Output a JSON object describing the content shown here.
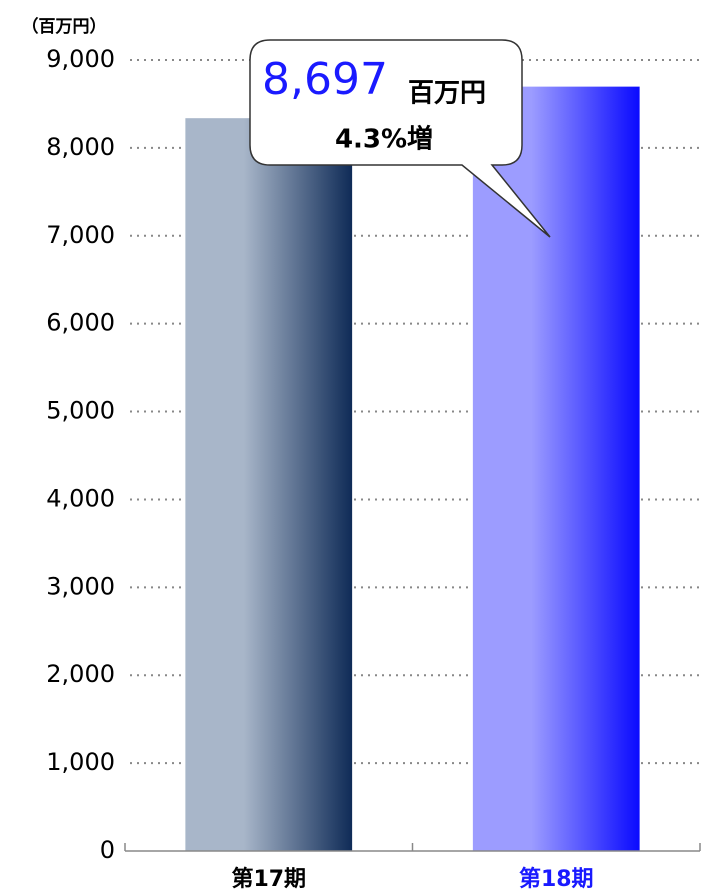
{
  "chart_data": {
    "type": "bar",
    "unit_label": "（百万円）",
    "categories": [
      "第17期",
      "第18期"
    ],
    "values": [
      8338,
      8697
    ],
    "value_labels": [
      null,
      "8,697"
    ],
    "value_label_unit": "百万円",
    "annotation": "4.3%増",
    "gradients": [
      [
        "#a8b6c9",
        "#0f2b57"
      ],
      [
        "#9c9cff",
        "#0a0aff"
      ]
    ],
    "label_colors": [
      "#000000",
      "#1a1aff"
    ],
    "value_label_color": "#1a1aff",
    "ylim": [
      0,
      9000
    ],
    "yticks": [
      0,
      {
        "value": 1000,
        "label": "1,000"
      },
      {
        "value": 2000,
        "label": "2,000"
      },
      {
        "value": 3000,
        "label": "3,000"
      },
      {
        "value": 4000,
        "label": "4,000"
      },
      {
        "value": 5000,
        "label": "5,000"
      },
      {
        "value": 6000,
        "label": "6,000"
      },
      {
        "value": 7000,
        "label": "7,000"
      },
      {
        "value": 8000,
        "label": "8,000"
      },
      {
        "value": 9000,
        "label": "9,000"
      }
    ],
    "grid": true
  }
}
